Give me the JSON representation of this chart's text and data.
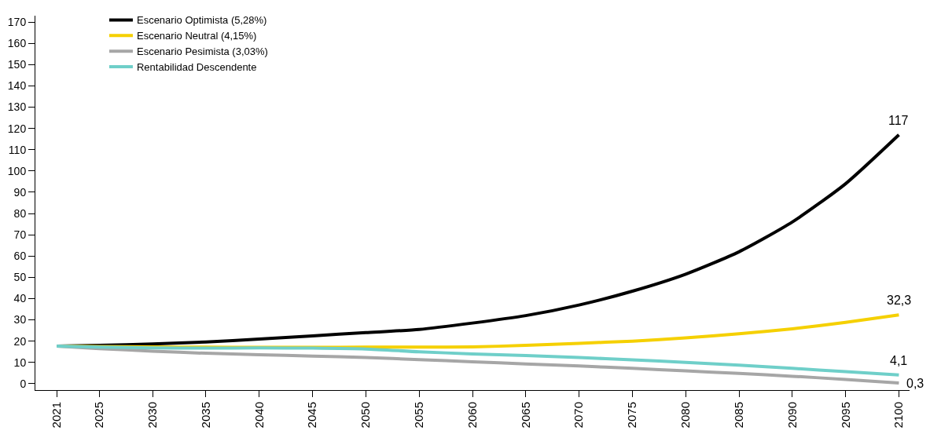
{
  "chart_data": {
    "type": "line",
    "x": [
      2021,
      2025,
      2030,
      2035,
      2040,
      2045,
      2050,
      2055,
      2060,
      2065,
      2070,
      2075,
      2080,
      2085,
      2090,
      2095,
      2100
    ],
    "series": [
      {
        "name": "Escenario Optimista (5,28%)",
        "color": "#000000",
        "values": [
          17.7,
          18,
          18.7,
          19.6,
          21,
          22.5,
          24,
          25.5,
          28.5,
          32,
          37,
          43.5,
          51.5,
          62,
          76,
          94,
          117
        ],
        "value_labels": [
          null,
          null,
          null,
          null,
          null,
          null,
          null,
          null,
          null,
          null,
          null,
          null,
          null,
          null,
          null,
          null,
          "117"
        ]
      },
      {
        "name": "Escenario Neutral (4,15%)",
        "color": "#f5d000",
        "values": [
          17.7,
          17.5,
          17.3,
          17.2,
          17.1,
          17.1,
          17.2,
          17.2,
          17.3,
          18,
          19,
          20,
          21.5,
          23.5,
          25.8,
          28.8,
          32.3
        ],
        "value_labels": [
          null,
          null,
          null,
          null,
          null,
          null,
          null,
          null,
          null,
          null,
          null,
          null,
          null,
          null,
          null,
          null,
          "32,3"
        ]
      },
      {
        "name": "Escenario Pesimista (3,03%)",
        "color": "#a6a6a6",
        "values": [
          17.7,
          16.5,
          15.3,
          14.3,
          13.6,
          13,
          12.3,
          11.3,
          10.3,
          9.3,
          8.3,
          7.2,
          6,
          4.8,
          3.5,
          2,
          0.3
        ],
        "value_labels": [
          null,
          null,
          null,
          null,
          null,
          null,
          null,
          null,
          null,
          null,
          null,
          null,
          null,
          null,
          null,
          null,
          "0,3"
        ]
      },
      {
        "name": "Rentabilidad Descendente",
        "color": "#6fcfc9",
        "values": [
          17.7,
          17.2,
          16.8,
          16.7,
          16.8,
          16.7,
          16.3,
          15,
          14,
          13.2,
          12.3,
          11.2,
          10,
          8.7,
          7.2,
          5.7,
          4.1
        ],
        "value_labels": [
          null,
          null,
          null,
          null,
          null,
          null,
          null,
          null,
          null,
          null,
          null,
          null,
          null,
          null,
          null,
          null,
          "4,1"
        ]
      }
    ],
    "xlim": [
      2019,
      2101
    ],
    "xticks": [
      2021,
      2025,
      2030,
      2035,
      2040,
      2045,
      2050,
      2055,
      2060,
      2065,
      2070,
      2075,
      2080,
      2085,
      2090,
      2095,
      2100
    ],
    "ylim": [
      -3,
      173
    ],
    "yticks": [
      0,
      10,
      20,
      30,
      40,
      50,
      60,
      70,
      80,
      90,
      100,
      110,
      120,
      130,
      140,
      150,
      160,
      170
    ],
    "legend": "top left",
    "marker": "none",
    "line_style": "solid"
  }
}
